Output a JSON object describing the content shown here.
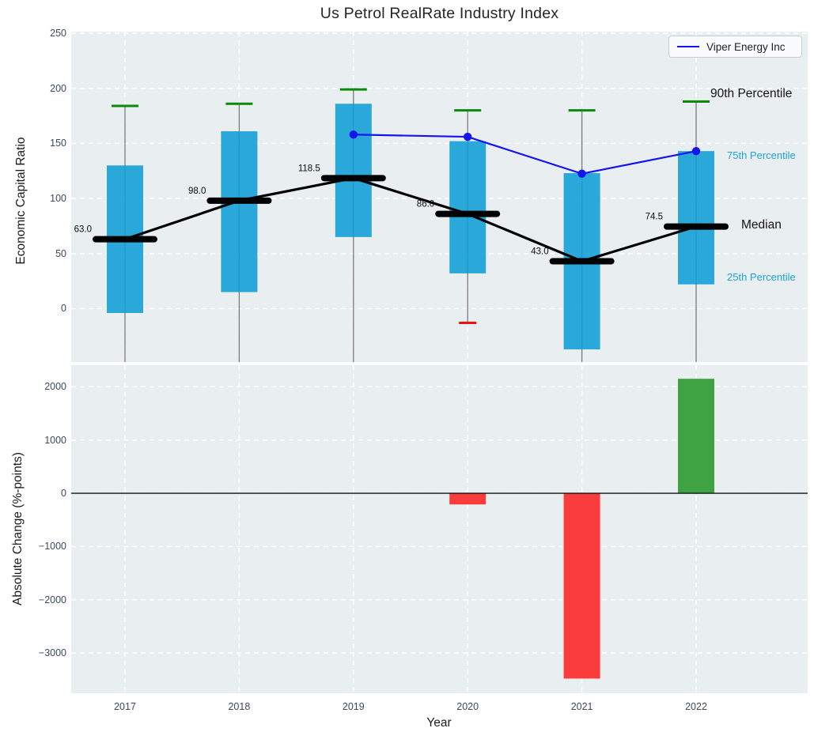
{
  "title": "Us Petrol RealRate Industry Index",
  "legend": {
    "label": "Viper Energy Inc"
  },
  "annotations": {
    "p90": "90th Percentile",
    "p75": "75th Percentile",
    "median": "Median",
    "p25": "25th Percentile"
  },
  "axes": {
    "top": {
      "ylabel": "Economic Capital Ratio",
      "ytick_values": [
        0,
        50,
        100,
        150,
        200,
        250
      ],
      "ytick_labels": [
        "0",
        "50",
        "100",
        "150",
        "200",
        "250"
      ],
      "ylim": [
        -48.5,
        251.5
      ]
    },
    "bottom": {
      "ylabel": "Absolute Change (%-points)",
      "xlabel": "Year",
      "ytick_values": [
        2000,
        1000,
        0,
        -1000,
        -2000,
        -3000
      ],
      "ytick_labels": [
        "2000",
        "1000",
        "0",
        "−1000",
        "−2000",
        "−3000"
      ],
      "ylim": [
        -3755,
        2405
      ],
      "xtick_labels": [
        "2017",
        "2018",
        "2019",
        "2020",
        "2021",
        "2022"
      ]
    }
  },
  "colors": {
    "plot_bg": "#e9eef0",
    "grid": "#ffffff",
    "box_fill": "#0f9ed6",
    "whisker": "#7a7a7a",
    "p90_cap": "#0a8a0a",
    "p10_cap": "#ef1010",
    "median_line": "#000000",
    "company_line": "#1414ee",
    "bar_negative": "#fa3c3c",
    "bar_positive": "#3fa344",
    "zero_line": "#111111",
    "tick_text": "#3b4a5c"
  },
  "chart_data": [
    {
      "type": "box",
      "title": "Us Petrol RealRate Industry Index",
      "x": [
        2017,
        2018,
        2019,
        2020,
        2021,
        2022
      ],
      "series": [
        {
          "name": "90th Percentile",
          "values": [
            184,
            186,
            199,
            180,
            180,
            188
          ]
        },
        {
          "name": "75th Percentile",
          "values": [
            130,
            161,
            186,
            152,
            123,
            143
          ]
        },
        {
          "name": "Median",
          "values": [
            63.0,
            98.0,
            118.5,
            86.0,
            43.0,
            74.5
          ]
        },
        {
          "name": "25th Percentile",
          "values": [
            -4,
            15,
            65,
            32,
            -37,
            22
          ]
        },
        {
          "name": "10th Percentile",
          "values": [
            null,
            null,
            null,
            -13,
            null,
            null
          ]
        }
      ],
      "median_labels": [
        "63.0",
        "98.0",
        "118.5",
        "86.0",
        "43.0",
        "74.5"
      ],
      "overlay_line": {
        "name": "Viper Energy Inc",
        "x": [
          2019,
          2020,
          2021,
          2022
        ],
        "values": [
          158,
          156,
          122.5,
          143
        ]
      },
      "ylabel": "Economic Capital Ratio",
      "ylim": [
        -48.5,
        251.5
      ],
      "legend_position": "upper right",
      "grid": true
    },
    {
      "type": "bar",
      "categories": [
        2017,
        2018,
        2019,
        2020,
        2021,
        2022
      ],
      "values": [
        null,
        null,
        null,
        -210,
        -3480,
        2150
      ],
      "xlabel": "Year",
      "ylabel": "Absolute Change (%-points)",
      "ylim": [
        -3755,
        2405
      ],
      "grid": true
    }
  ]
}
